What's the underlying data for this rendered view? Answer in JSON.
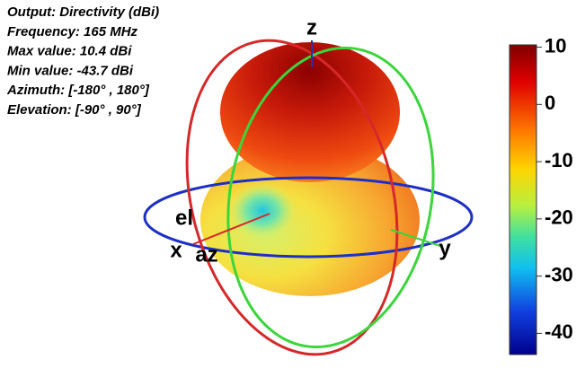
{
  "info": [
    "Output: Directivity (dBi)",
    "Frequency: 165 MHz",
    "Max value: 10.4 dBi",
    "Min value: -43.7 dBi",
    "Azimuth: [-180° , 180°]",
    "Elevation: [-90° , 90°]"
  ],
  "axes": {
    "z": "z",
    "y": "y",
    "x": "x",
    "el": "el",
    "az": "az"
  },
  "colorbar": {
    "lim": [
      -43.7,
      10.4
    ],
    "ticks": [
      10,
      0,
      -10,
      -20,
      -30,
      -40
    ]
  }
}
